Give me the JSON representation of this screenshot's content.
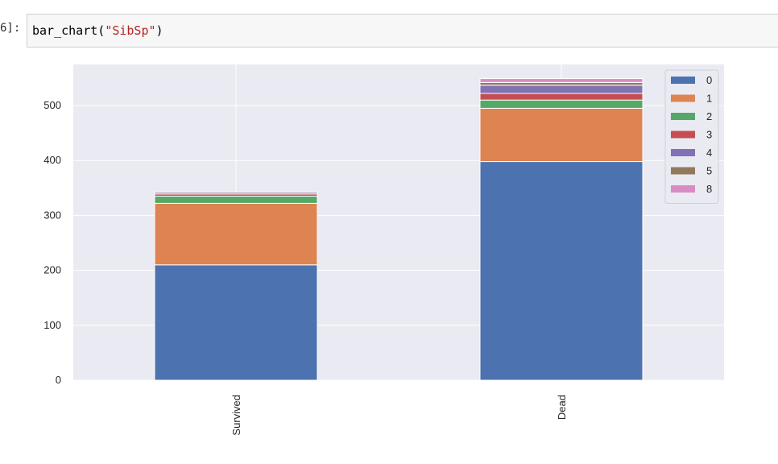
{
  "cell": {
    "prompt": "6]:",
    "code_fn": "bar_chart(",
    "code_arg": "\"SibSp\"",
    "code_end": ")"
  },
  "chart_data": {
    "type": "bar",
    "stacked": true,
    "categories": [
      "Survived",
      "Dead"
    ],
    "series": [
      {
        "name": "0",
        "values": [
          210,
          398
        ],
        "color": "#4c72b0"
      },
      {
        "name": "1",
        "values": [
          112,
          97
        ],
        "color": "#dd8452"
      },
      {
        "name": "2",
        "values": [
          13,
          15
        ],
        "color": "#55a868"
      },
      {
        "name": "3",
        "values": [
          4,
          12
        ],
        "color": "#c44e52"
      },
      {
        "name": "4",
        "values": [
          3,
          15
        ],
        "color": "#8172b3"
      },
      {
        "name": "5",
        "values": [
          0,
          5
        ],
        "color": "#937860"
      },
      {
        "name": "8",
        "values": [
          0,
          7
        ],
        "color": "#da8bc3"
      }
    ],
    "y_ticks": [
      0,
      100,
      200,
      300,
      400,
      500
    ],
    "ylim": [
      0,
      575
    ],
    "grid": true,
    "legend": "top-right",
    "background": "#eaeaf2",
    "xtick_rotation": 90
  }
}
